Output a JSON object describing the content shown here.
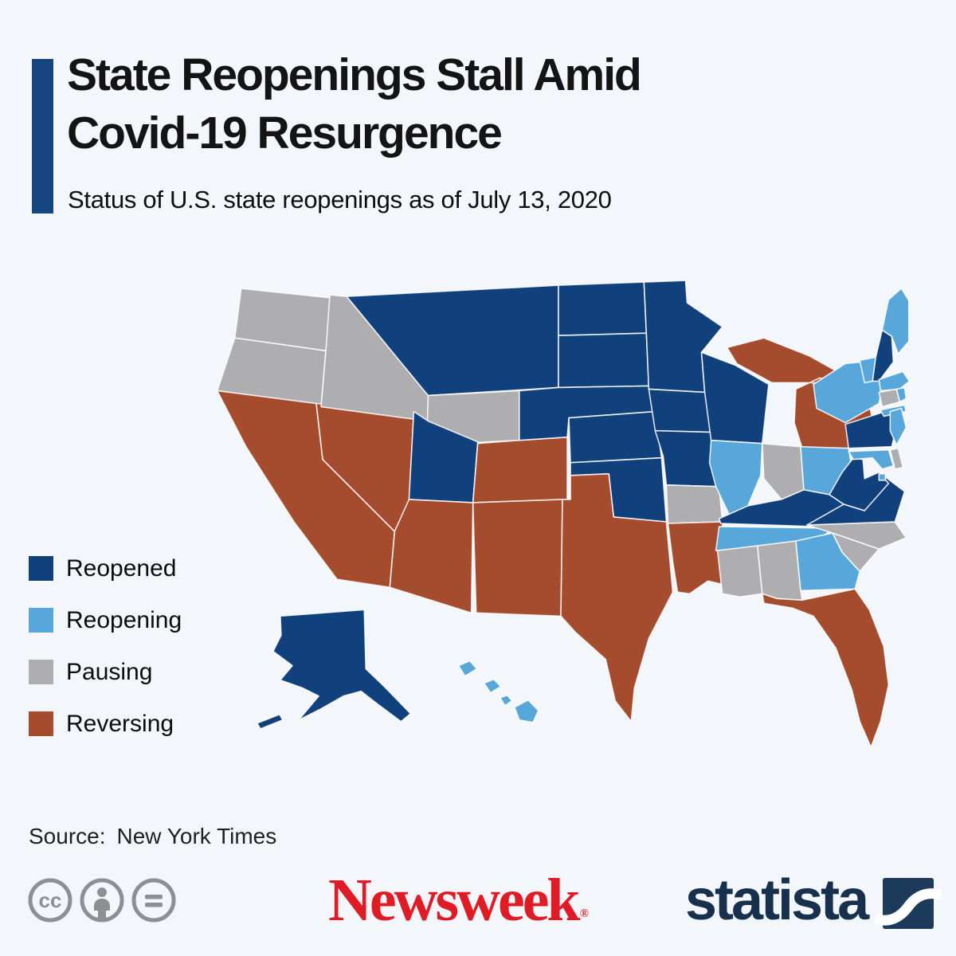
{
  "header": {
    "title_line1": "State Reopenings Stall Amid",
    "title_line2": "Covid-19 Resurgence",
    "subtitle": "Status of U.S. state reopenings as of July 13, 2020"
  },
  "legend": {
    "items": [
      {
        "label": "Reopened",
        "status": "reopened",
        "color": "#11417d"
      },
      {
        "label": "Reopening",
        "status": "reopening",
        "color": "#57a7db"
      },
      {
        "label": "Pausing",
        "status": "pausing",
        "color": "#aeaeb0"
      },
      {
        "label": "Reversing",
        "status": "reversing",
        "color": "#a54c2f"
      }
    ]
  },
  "chart_data": {
    "type": "heatmap",
    "title": "Status of U.S. state reopenings as of July 13, 2020",
    "legend_position": "left",
    "categories": [
      "reopened",
      "reopening",
      "pausing",
      "reversing"
    ]
  },
  "map": {
    "states": [
      {
        "abbr": "WA",
        "name": "Washington",
        "status": "pausing"
      },
      {
        "abbr": "OR",
        "name": "Oregon",
        "status": "pausing"
      },
      {
        "abbr": "CA",
        "name": "California",
        "status": "reversing"
      },
      {
        "abbr": "NV",
        "name": "Nevada",
        "status": "reversing"
      },
      {
        "abbr": "ID",
        "name": "Idaho",
        "status": "pausing"
      },
      {
        "abbr": "MT",
        "name": "Montana",
        "status": "reopened"
      },
      {
        "abbr": "WY",
        "name": "Wyoming",
        "status": "pausing"
      },
      {
        "abbr": "UT",
        "name": "Utah",
        "status": "reopened"
      },
      {
        "abbr": "CO",
        "name": "Colorado",
        "status": "reversing"
      },
      {
        "abbr": "AZ",
        "name": "Arizona",
        "status": "reversing"
      },
      {
        "abbr": "NM",
        "name": "New Mexico",
        "status": "reversing"
      },
      {
        "abbr": "ND",
        "name": "North Dakota",
        "status": "reopened"
      },
      {
        "abbr": "SD",
        "name": "South Dakota",
        "status": "reopened"
      },
      {
        "abbr": "NE",
        "name": "Nebraska",
        "status": "reopened"
      },
      {
        "abbr": "KS",
        "name": "Kansas",
        "status": "reopened"
      },
      {
        "abbr": "OK",
        "name": "Oklahoma",
        "status": "reopened"
      },
      {
        "abbr": "TX",
        "name": "Texas",
        "status": "reversing"
      },
      {
        "abbr": "MN",
        "name": "Minnesota",
        "status": "reopened"
      },
      {
        "abbr": "IA",
        "name": "Iowa",
        "status": "reopened"
      },
      {
        "abbr": "MO",
        "name": "Missouri",
        "status": "reopened"
      },
      {
        "abbr": "AR",
        "name": "Arkansas",
        "status": "pausing"
      },
      {
        "abbr": "LA",
        "name": "Louisiana",
        "status": "reversing"
      },
      {
        "abbr": "WI",
        "name": "Wisconsin",
        "status": "reopened"
      },
      {
        "abbr": "IL",
        "name": "Illinois",
        "status": "reopening"
      },
      {
        "abbr": "MI",
        "name": "Michigan",
        "status": "reversing"
      },
      {
        "abbr": "IN",
        "name": "Indiana",
        "status": "pausing"
      },
      {
        "abbr": "OH",
        "name": "Ohio",
        "status": "reopening"
      },
      {
        "abbr": "KY",
        "name": "Kentucky",
        "status": "reopened"
      },
      {
        "abbr": "TN",
        "name": "Tennessee",
        "status": "reopening"
      },
      {
        "abbr": "MS",
        "name": "Mississippi",
        "status": "pausing"
      },
      {
        "abbr": "AL",
        "name": "Alabama",
        "status": "pausing"
      },
      {
        "abbr": "GA",
        "name": "Georgia",
        "status": "reopening"
      },
      {
        "abbr": "FL",
        "name": "Florida",
        "status": "reversing"
      },
      {
        "abbr": "SC",
        "name": "South Carolina",
        "status": "pausing"
      },
      {
        "abbr": "NC",
        "name": "North Carolina",
        "status": "pausing"
      },
      {
        "abbr": "VA",
        "name": "Virginia",
        "status": "reopened"
      },
      {
        "abbr": "WV",
        "name": "West Virginia",
        "status": "reopened"
      },
      {
        "abbr": "PA",
        "name": "Pennsylvania",
        "status": "reopened"
      },
      {
        "abbr": "NY",
        "name": "New York",
        "status": "reopening"
      },
      {
        "abbr": "NJ",
        "name": "New Jersey",
        "status": "reopening"
      },
      {
        "abbr": "DE",
        "name": "Delaware",
        "status": "pausing"
      },
      {
        "abbr": "MD",
        "name": "Maryland",
        "status": "reopening"
      },
      {
        "abbr": "DC",
        "name": "District of Columbia",
        "status": "reopening"
      },
      {
        "abbr": "VT",
        "name": "Vermont",
        "status": "reopening"
      },
      {
        "abbr": "NH",
        "name": "New Hampshire",
        "status": "reopened"
      },
      {
        "abbr": "ME",
        "name": "Maine",
        "status": "reopening"
      },
      {
        "abbr": "MA",
        "name": "Massachusetts",
        "status": "reopening"
      },
      {
        "abbr": "CT",
        "name": "Connecticut",
        "status": "pausing"
      },
      {
        "abbr": "RI",
        "name": "Rhode Island",
        "status": "reopening"
      },
      {
        "abbr": "AK",
        "name": "Alaska",
        "status": "reopened"
      },
      {
        "abbr": "HI",
        "name": "Hawaii",
        "status": "reopening"
      }
    ]
  },
  "footer": {
    "source_label": "Source:",
    "source_value": "New York Times",
    "newsweek_logo_text": "Newsweek",
    "registered_mark": "®",
    "statista_logo_text": "statista"
  },
  "colors": {
    "background": "#f3f6fa",
    "accent_bar": "#15457e",
    "newsweek_red": "#e01b26",
    "statista_navy": "#16304e",
    "statista_icon_navy": "#1c3a59",
    "cc_gray": "#8c9093"
  }
}
